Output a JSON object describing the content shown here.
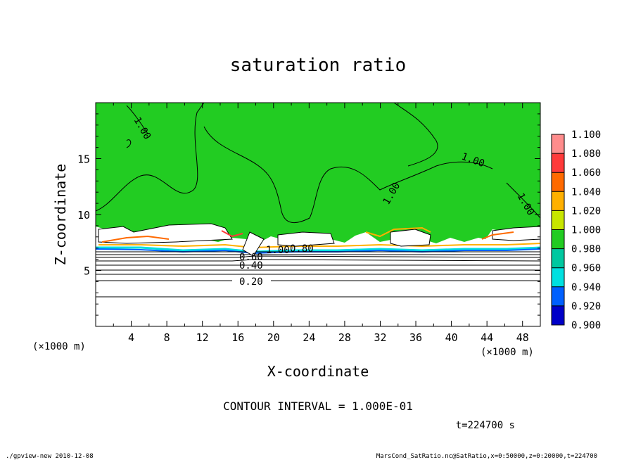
{
  "chart_data": {
    "type": "heatmap",
    "title": "saturation ratio",
    "xlabel": "X-coordinate",
    "ylabel": "Z-coordinate",
    "x_unit": "(×1000 m)",
    "y_unit": "(×1000 m)",
    "xlim": [
      0,
      50
    ],
    "ylim": [
      0,
      20
    ],
    "x_ticks": [
      "4",
      "8",
      "12",
      "16",
      "20",
      "24",
      "28",
      "32",
      "36",
      "40",
      "44",
      "48"
    ],
    "y_ticks": [
      "5",
      "10",
      "15"
    ],
    "colorbar": {
      "levels": [
        "1.100",
        "1.080",
        "1.060",
        "1.040",
        "1.020",
        "1.000",
        "0.980",
        "0.960",
        "0.940",
        "0.920",
        "0.900"
      ],
      "colors": [
        "#ff8c8c",
        "#ff3a3a",
        "#ff6a00",
        "#ffb000",
        "#c8e600",
        "#22cc22",
        "#00c8a0",
        "#00e0e0",
        "#0060ff",
        "#0000c8",
        "#7a00c0"
      ]
    },
    "contour_labels": [
      "1.00",
      "1.00",
      "1.00",
      "1.00",
      "0.60",
      "0.40",
      "0.20",
      "1.00",
      "0.80"
    ],
    "contour_interval": "CONTOUR INTERVAL = 1.000E-01",
    "time": "t=224700 s"
  },
  "footer": {
    "left": "./gpview-new  2010-12-08",
    "right": "MarsCond_SatRatio.nc@SatRatio,x=0:50000,z=0:20000,t=224700"
  }
}
